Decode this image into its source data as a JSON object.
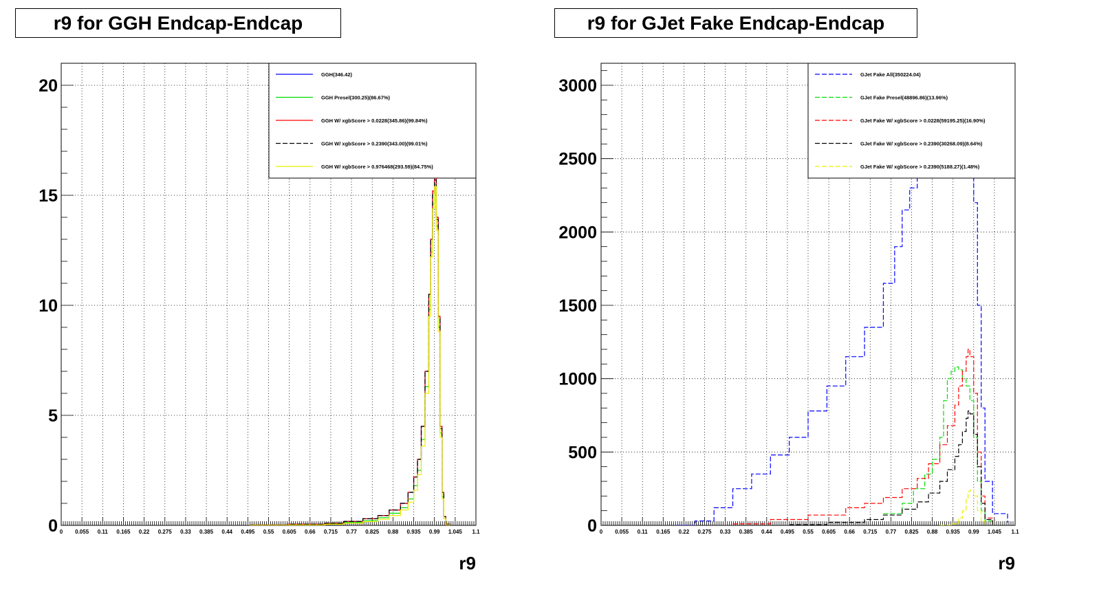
{
  "chart_data": [
    {
      "type": "line",
      "title": "r9 for GGH Endcap-Endcap",
      "xlabel": "r9",
      "ylabel": "",
      "xlim": [
        0,
        1.1
      ],
      "ylim": [
        0,
        21
      ],
      "grid": true,
      "legend_position": "top-right",
      "x_ticks": [
        "0",
        "0.055",
        "0.11",
        "0.165",
        "0.22",
        "0.275",
        "0.33",
        "0.385",
        "0.44",
        "0.495",
        "0.55",
        "0.605",
        "0.66",
        "0.715",
        "0.77",
        "0.825",
        "0.88",
        "0.935",
        "0.99",
        "1.045",
        "1.1"
      ],
      "y_ticks": [
        "0",
        "5",
        "10",
        "15",
        "20"
      ],
      "series": [
        {
          "name": "GGH(346.42)",
          "color": "#0000ff",
          "dash": "solid",
          "x": [
            0.5,
            0.6,
            0.7,
            0.75,
            0.8,
            0.84,
            0.87,
            0.9,
            0.92,
            0.935,
            0.945,
            0.955,
            0.965,
            0.975,
            0.98,
            0.985,
            0.99,
            0.995,
            1.0,
            1.005,
            1.01,
            1.015,
            1.02,
            1.03
          ],
          "y": [
            0.02,
            0.05,
            0.1,
            0.18,
            0.3,
            0.45,
            0.7,
            1.0,
            1.5,
            2.2,
            3.0,
            4.5,
            7.0,
            10.5,
            13.0,
            15.2,
            15.8,
            14.0,
            9.5,
            4.5,
            1.5,
            0.4,
            0.05,
            0
          ]
        },
        {
          "name": "GGH Presel(300.25)(86.67%)",
          "color": "#00dd00",
          "dash": "solid",
          "x": [
            0.5,
            0.6,
            0.7,
            0.75,
            0.8,
            0.84,
            0.87,
            0.9,
            0.92,
            0.935,
            0.945,
            0.955,
            0.965,
            0.975,
            0.98,
            0.985,
            0.99,
            0.995,
            1.0,
            1.005,
            1.01,
            1.015,
            1.02,
            1.03
          ],
          "y": [
            0.01,
            0.03,
            0.07,
            0.13,
            0.22,
            0.35,
            0.55,
            0.8,
            1.2,
            1.8,
            2.5,
            3.9,
            6.3,
            9.8,
            12.4,
            14.6,
            15.5,
            13.6,
            9.0,
            4.2,
            1.3,
            0.3,
            0.04,
            0
          ]
        },
        {
          "name": "GGH W/ xgbScore > 0.0228(345.86)(99.84%)",
          "color": "#ff0000",
          "dash": "solid",
          "x": [
            0.5,
            0.6,
            0.7,
            0.75,
            0.8,
            0.84,
            0.87,
            0.9,
            0.92,
            0.935,
            0.945,
            0.955,
            0.965,
            0.975,
            0.98,
            0.985,
            0.99,
            0.995,
            1.0,
            1.005,
            1.01,
            1.015,
            1.02,
            1.03
          ],
          "y": [
            0.02,
            0.05,
            0.1,
            0.18,
            0.3,
            0.45,
            0.7,
            1.0,
            1.5,
            2.2,
            3.0,
            4.5,
            7.0,
            10.5,
            13.0,
            15.2,
            15.8,
            14.0,
            9.5,
            4.5,
            1.5,
            0.4,
            0.05,
            0
          ]
        },
        {
          "name": "GGH W/ xgbScore > 0.2390(343.00)(99.01%)",
          "color": "#000000",
          "dash": "dashed",
          "x": [
            0.5,
            0.6,
            0.7,
            0.75,
            0.8,
            0.84,
            0.87,
            0.9,
            0.92,
            0.935,
            0.945,
            0.955,
            0.965,
            0.975,
            0.98,
            0.985,
            0.99,
            0.995,
            1.0,
            1.005,
            1.01,
            1.015,
            1.02,
            1.03
          ],
          "y": [
            0.02,
            0.05,
            0.1,
            0.18,
            0.3,
            0.45,
            0.7,
            1.0,
            1.5,
            2.2,
            3.0,
            4.5,
            7.0,
            10.5,
            13.0,
            15.1,
            15.7,
            13.9,
            9.4,
            4.4,
            1.5,
            0.4,
            0.05,
            0
          ]
        },
        {
          "name": "GGH W/ xgbScore > 0.976468(293.59)(84.75%)",
          "color": "#eeee00",
          "dash": "solid",
          "x": [
            0.5,
            0.6,
            0.7,
            0.75,
            0.8,
            0.84,
            0.87,
            0.9,
            0.92,
            0.935,
            0.945,
            0.955,
            0.965,
            0.975,
            0.98,
            0.985,
            0.99,
            0.995,
            1.0,
            1.005,
            1.01,
            1.015,
            1.02,
            1.03
          ],
          "y": [
            0.01,
            0.02,
            0.05,
            0.1,
            0.17,
            0.28,
            0.45,
            0.7,
            1.05,
            1.6,
            2.3,
            3.6,
            6.0,
            9.5,
            12.2,
            14.4,
            15.4,
            13.4,
            8.8,
            4.0,
            1.2,
            0.3,
            0.03,
            0
          ]
        }
      ]
    },
    {
      "type": "line",
      "title": "r9 for GJet Fake Endcap-Endcap",
      "xlabel": "r9",
      "ylabel": "",
      "xlim": [
        0,
        1.1
      ],
      "ylim": [
        0,
        3150
      ],
      "grid": true,
      "legend_position": "top-right",
      "x_ticks": [
        "0",
        "0.055",
        "0.11",
        "0.165",
        "0.22",
        "0.275",
        "0.33",
        "0.385",
        "0.44",
        "0.495",
        "0.55",
        "0.605",
        "0.66",
        "0.715",
        "0.77",
        "0.825",
        "0.88",
        "0.935",
        "0.99",
        "1.045",
        "1.1"
      ],
      "y_ticks": [
        "0",
        "500",
        "1000",
        "1500",
        "2000",
        "2500",
        "3000"
      ],
      "series": [
        {
          "name": "GJet Fake All(350224.04)",
          "color": "#0000ff",
          "dash": "dashed",
          "x": [
            0.2,
            0.25,
            0.3,
            0.35,
            0.4,
            0.45,
            0.5,
            0.55,
            0.6,
            0.65,
            0.7,
            0.75,
            0.78,
            0.8,
            0.82,
            0.84,
            0.86,
            0.88,
            0.9,
            0.92,
            0.94,
            0.96,
            0.97,
            0.98,
            0.99,
            1.0,
            1.01,
            1.02,
            1.04,
            1.08
          ],
          "y": [
            0,
            30,
            120,
            250,
            350,
            480,
            600,
            780,
            950,
            1150,
            1350,
            1650,
            1900,
            2150,
            2300,
            2450,
            2600,
            2800,
            3000,
            3150,
            3200,
            3150,
            3000,
            2700,
            2200,
            1500,
            800,
            300,
            80,
            20
          ]
        },
        {
          "name": "GJet Fake Presel(48896.86)(13.96%)",
          "color": "#00dd00",
          "dash": "dashed",
          "x": [
            0.75,
            0.8,
            0.83,
            0.86,
            0.88,
            0.9,
            0.91,
            0.92,
            0.93,
            0.94,
            0.95,
            0.96,
            0.97,
            0.98,
            0.99,
            1.0,
            1.01,
            1.02,
            1.04
          ],
          "y": [
            80,
            150,
            250,
            350,
            450,
            600,
            850,
            1000,
            1050,
            1080,
            1060,
            1000,
            950,
            850,
            600,
            300,
            100,
            30,
            5
          ]
        },
        {
          "name": "GJet Fake W/ xgbScore > 0.0228(59195.25)(16.90%)",
          "color": "#ff0000",
          "dash": "dashed",
          "x": [
            0.35,
            0.45,
            0.55,
            0.65,
            0.7,
            0.75,
            0.8,
            0.84,
            0.87,
            0.9,
            0.92,
            0.94,
            0.95,
            0.96,
            0.97,
            0.975,
            0.98,
            0.99,
            1.0,
            1.01,
            1.02,
            1.04
          ],
          "y": [
            10,
            40,
            70,
            120,
            150,
            190,
            250,
            320,
            420,
            550,
            680,
            820,
            950,
            1050,
            1150,
            1200,
            1150,
            900,
            500,
            200,
            50,
            10
          ]
        },
        {
          "name": "GJet Fake W/ xgbScore > 0.2390(30268.09)(8.64%)",
          "color": "#000000",
          "dash": "dashed",
          "x": [
            0.5,
            0.6,
            0.7,
            0.75,
            0.8,
            0.84,
            0.87,
            0.9,
            0.92,
            0.94,
            0.95,
            0.96,
            0.97,
            0.975,
            0.98,
            0.99,
            1.0,
            1.01,
            1.02,
            1.04
          ],
          "y": [
            5,
            20,
            40,
            70,
            110,
            160,
            220,
            300,
            380,
            470,
            550,
            640,
            730,
            780,
            760,
            620,
            400,
            150,
            40,
            5
          ]
        },
        {
          "name": "GJet Fake W/ xgbScore > 0.2390(5188.27)(1.48%)",
          "color": "#eeee00",
          "dash": "dashed",
          "x": [
            0.9,
            0.93,
            0.95,
            0.96,
            0.97,
            0.975,
            0.98,
            0.99,
            1.0,
            1.01,
            1.02
          ],
          "y": [
            0,
            10,
            50,
            100,
            180,
            230,
            240,
            200,
            100,
            30,
            0
          ]
        }
      ]
    }
  ]
}
